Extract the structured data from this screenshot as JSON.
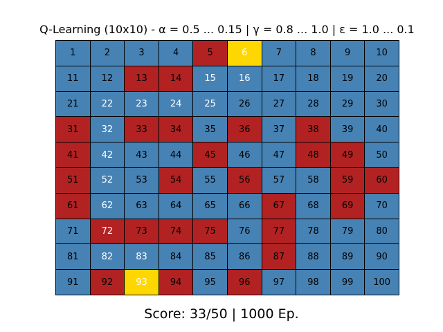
{
  "title": "Q-Learning (10x10) - α = 0.5 ... 0.15 | γ = 0.8 ... 1.0 | ε = 1.0 ... 0.1",
  "score": "Score: 33/50 | 1000 Ep.",
  "colors": {
    "B": "#4682b4",
    "R": "#b22222",
    "Y": "#ffd700",
    "text_dark": "#000000",
    "text_light": "#ffffff"
  },
  "grid": {
    "rows": [
      "BBBBRYBBBB",
      "BBRRBBBBBB",
      "BBBBBBBBBB",
      "RBRRBRBRBB",
      "RBBBRBBRRB",
      "RBBRBRBBRR",
      "RBBBBBRBRB",
      "BRRRRBRBBB",
      "BBBBBBRBBB",
      "BRYRBRBBBB"
    ],
    "light_text_cells": [
      6,
      15,
      16,
      22,
      23,
      24,
      25,
      32,
      42,
      52,
      62,
      72,
      82,
      83,
      93
    ]
  },
  "cells": []
}
